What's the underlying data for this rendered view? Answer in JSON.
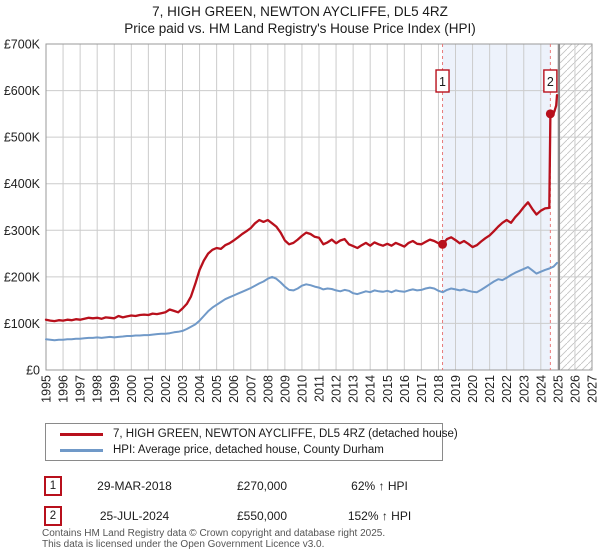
{
  "title": {
    "line1": "7, HIGH GREEN, NEWTON AYCLIFFE, DL5 4RZ",
    "line2": "Price paid vs. HM Land Registry's House Price Index (HPI)"
  },
  "chart_data": {
    "type": "line",
    "x_axis": {
      "min": 1995,
      "max": 2027,
      "tick_years": [
        1995,
        1996,
        1997,
        1998,
        1999,
        2000,
        2001,
        2002,
        2003,
        2004,
        2005,
        2006,
        2007,
        2008,
        2009,
        2010,
        2011,
        2012,
        2013,
        2014,
        2015,
        2016,
        2017,
        2018,
        2019,
        2020,
        2021,
        2022,
        2023,
        2024,
        2025,
        2026,
        2027
      ]
    },
    "y_axis": {
      "max_k": 700,
      "tick_step_k": 100,
      "tick_labels": [
        "£0",
        "£100K",
        "£200K",
        "£300K",
        "£400K",
        "£500K",
        "£600K",
        "£700K"
      ]
    },
    "colors": {
      "property": "#b8101c",
      "hpi": "#7099c8",
      "band": "#edf2fb",
      "grid": "#cccccc",
      "frame": "#9a9a9a",
      "hatch": "#c4c4c4",
      "hatch_edge": "#888888",
      "dashed": "#e87a7a",
      "text": "#222222"
    },
    "shaded_span": {
      "from": 2018.24,
      "to": 2024.56
    },
    "hatched_span": {
      "from": 2025.07,
      "to": 2027
    },
    "grid": true,
    "series": [
      {
        "name": "7, HIGH GREEN, NEWTON AYCLIFFE, DL5 4RZ (detached house)",
        "color": "#b8101c",
        "points": [
          [
            1995.0,
            108
          ],
          [
            1995.25,
            106
          ],
          [
            1995.5,
            105
          ],
          [
            1995.75,
            107
          ],
          [
            1996.0,
            106
          ],
          [
            1996.25,
            108
          ],
          [
            1996.5,
            107
          ],
          [
            1996.75,
            109
          ],
          [
            1997.0,
            108
          ],
          [
            1997.25,
            110
          ],
          [
            1997.5,
            112
          ],
          [
            1997.75,
            111
          ],
          [
            1998.0,
            112
          ],
          [
            1998.25,
            110
          ],
          [
            1998.5,
            113
          ],
          [
            1998.75,
            112
          ],
          [
            1999.0,
            111
          ],
          [
            1999.25,
            116
          ],
          [
            1999.5,
            113
          ],
          [
            1999.75,
            115
          ],
          [
            2000.0,
            117
          ],
          [
            2000.25,
            116
          ],
          [
            2000.5,
            118
          ],
          [
            2000.75,
            119
          ],
          [
            2001.0,
            118
          ],
          [
            2001.25,
            121
          ],
          [
            2001.5,
            120
          ],
          [
            2001.75,
            122
          ],
          [
            2002.0,
            124
          ],
          [
            2002.25,
            130
          ],
          [
            2002.5,
            127
          ],
          [
            2002.75,
            124
          ],
          [
            2003.0,
            132
          ],
          [
            2003.25,
            142
          ],
          [
            2003.5,
            158
          ],
          [
            2003.75,
            185
          ],
          [
            2004.0,
            215
          ],
          [
            2004.25,
            235
          ],
          [
            2004.5,
            250
          ],
          [
            2004.75,
            258
          ],
          [
            2005.0,
            262
          ],
          [
            2005.25,
            260
          ],
          [
            2005.5,
            268
          ],
          [
            2005.75,
            272
          ],
          [
            2006.0,
            278
          ],
          [
            2006.25,
            285
          ],
          [
            2006.5,
            292
          ],
          [
            2006.75,
            298
          ],
          [
            2007.0,
            305
          ],
          [
            2007.25,
            315
          ],
          [
            2007.5,
            322
          ],
          [
            2007.75,
            318
          ],
          [
            2008.0,
            322
          ],
          [
            2008.25,
            315
          ],
          [
            2008.5,
            308
          ],
          [
            2008.75,
            295
          ],
          [
            2009.0,
            278
          ],
          [
            2009.25,
            270
          ],
          [
            2009.5,
            273
          ],
          [
            2009.75,
            280
          ],
          [
            2010.0,
            288
          ],
          [
            2010.25,
            295
          ],
          [
            2010.5,
            292
          ],
          [
            2010.75,
            286
          ],
          [
            2011.0,
            284
          ],
          [
            2011.25,
            270
          ],
          [
            2011.5,
            274
          ],
          [
            2011.75,
            280
          ],
          [
            2012.0,
            272
          ],
          [
            2012.25,
            278
          ],
          [
            2012.5,
            281
          ],
          [
            2012.75,
            270
          ],
          [
            2013.0,
            266
          ],
          [
            2013.25,
            262
          ],
          [
            2013.5,
            268
          ],
          [
            2013.75,
            273
          ],
          [
            2014.0,
            267
          ],
          [
            2014.25,
            274
          ],
          [
            2014.5,
            270
          ],
          [
            2014.75,
            267
          ],
          [
            2015.0,
            271
          ],
          [
            2015.25,
            267
          ],
          [
            2015.5,
            273
          ],
          [
            2015.75,
            269
          ],
          [
            2016.0,
            265
          ],
          [
            2016.25,
            273
          ],
          [
            2016.5,
            277
          ],
          [
            2016.75,
            271
          ],
          [
            2017.0,
            270
          ],
          [
            2017.25,
            275
          ],
          [
            2017.5,
            280
          ],
          [
            2017.75,
            277
          ],
          [
            2018.0,
            272
          ],
          [
            2018.24,
            270
          ],
          [
            2018.5,
            281
          ],
          [
            2018.75,
            285
          ],
          [
            2019.0,
            279
          ],
          [
            2019.25,
            272
          ],
          [
            2019.5,
            277
          ],
          [
            2019.75,
            271
          ],
          [
            2020.0,
            264
          ],
          [
            2020.25,
            268
          ],
          [
            2020.5,
            276
          ],
          [
            2020.75,
            283
          ],
          [
            2021.0,
            289
          ],
          [
            2021.25,
            298
          ],
          [
            2021.5,
            308
          ],
          [
            2021.75,
            316
          ],
          [
            2022.0,
            322
          ],
          [
            2022.25,
            316
          ],
          [
            2022.5,
            328
          ],
          [
            2022.75,
            338
          ],
          [
            2023.0,
            350
          ],
          [
            2023.25,
            360
          ],
          [
            2023.5,
            346
          ],
          [
            2023.75,
            334
          ],
          [
            2024.0,
            342
          ],
          [
            2024.25,
            347
          ],
          [
            2024.5,
            348
          ],
          [
            2024.56,
            550
          ],
          [
            2024.7,
            548
          ],
          [
            2024.8,
            556
          ],
          [
            2024.9,
            568
          ],
          [
            2024.95,
            590
          ]
        ]
      },
      {
        "name": "HPI: Average price, detached house, County Durham",
        "color": "#7099c8",
        "points": [
          [
            1995.0,
            66
          ],
          [
            1995.25,
            65
          ],
          [
            1995.5,
            64
          ],
          [
            1995.75,
            65
          ],
          [
            1996.0,
            65
          ],
          [
            1996.25,
            66
          ],
          [
            1996.5,
            66
          ],
          [
            1996.75,
            67
          ],
          [
            1997.0,
            67
          ],
          [
            1997.25,
            68
          ],
          [
            1997.5,
            69
          ],
          [
            1997.75,
            69
          ],
          [
            1998.0,
            70
          ],
          [
            1998.25,
            69
          ],
          [
            1998.5,
            70
          ],
          [
            1998.75,
            71
          ],
          [
            1999.0,
            70
          ],
          [
            1999.25,
            71
          ],
          [
            1999.5,
            72
          ],
          [
            1999.75,
            73
          ],
          [
            2000.0,
            73
          ],
          [
            2000.25,
            74
          ],
          [
            2000.5,
            74
          ],
          [
            2000.75,
            75
          ],
          [
            2001.0,
            75
          ],
          [
            2001.25,
            76
          ],
          [
            2001.5,
            77
          ],
          [
            2001.75,
            78
          ],
          [
            2002.0,
            78
          ],
          [
            2002.25,
            79
          ],
          [
            2002.5,
            81
          ],
          [
            2002.75,
            82
          ],
          [
            2003.0,
            84
          ],
          [
            2003.25,
            88
          ],
          [
            2003.5,
            93
          ],
          [
            2003.75,
            98
          ],
          [
            2004.0,
            106
          ],
          [
            2004.25,
            116
          ],
          [
            2004.5,
            126
          ],
          [
            2004.75,
            134
          ],
          [
            2005.0,
            140
          ],
          [
            2005.25,
            146
          ],
          [
            2005.5,
            152
          ],
          [
            2005.75,
            156
          ],
          [
            2006.0,
            160
          ],
          [
            2006.25,
            164
          ],
          [
            2006.5,
            168
          ],
          [
            2006.75,
            172
          ],
          [
            2007.0,
            176
          ],
          [
            2007.25,
            181
          ],
          [
            2007.5,
            186
          ],
          [
            2007.75,
            190
          ],
          [
            2008.0,
            196
          ],
          [
            2008.25,
            200
          ],
          [
            2008.5,
            196
          ],
          [
            2008.75,
            188
          ],
          [
            2009.0,
            179
          ],
          [
            2009.25,
            172
          ],
          [
            2009.5,
            171
          ],
          [
            2009.75,
            175
          ],
          [
            2010.0,
            181
          ],
          [
            2010.25,
            184
          ],
          [
            2010.5,
            182
          ],
          [
            2010.75,
            179
          ],
          [
            2011.0,
            177
          ],
          [
            2011.25,
            173
          ],
          [
            2011.5,
            175
          ],
          [
            2011.75,
            174
          ],
          [
            2012.0,
            171
          ],
          [
            2012.25,
            169
          ],
          [
            2012.5,
            172
          ],
          [
            2012.75,
            170
          ],
          [
            2013.0,
            165
          ],
          [
            2013.25,
            163
          ],
          [
            2013.5,
            166
          ],
          [
            2013.75,
            169
          ],
          [
            2014.0,
            167
          ],
          [
            2014.25,
            171
          ],
          [
            2014.5,
            169
          ],
          [
            2014.75,
            168
          ],
          [
            2015.0,
            170
          ],
          [
            2015.25,
            167
          ],
          [
            2015.5,
            171
          ],
          [
            2015.75,
            169
          ],
          [
            2016.0,
            168
          ],
          [
            2016.25,
            171
          ],
          [
            2016.5,
            173
          ],
          [
            2016.75,
            171
          ],
          [
            2017.0,
            172
          ],
          [
            2017.25,
            175
          ],
          [
            2017.5,
            177
          ],
          [
            2017.75,
            175
          ],
          [
            2018.0,
            170
          ],
          [
            2018.25,
            167
          ],
          [
            2018.5,
            172
          ],
          [
            2018.75,
            175
          ],
          [
            2019.0,
            173
          ],
          [
            2019.25,
            171
          ],
          [
            2019.5,
            173
          ],
          [
            2019.75,
            170
          ],
          [
            2020.0,
            168
          ],
          [
            2020.25,
            167
          ],
          [
            2020.5,
            172
          ],
          [
            2020.75,
            178
          ],
          [
            2021.0,
            184
          ],
          [
            2021.25,
            190
          ],
          [
            2021.5,
            195
          ],
          [
            2021.75,
            193
          ],
          [
            2022.0,
            198
          ],
          [
            2022.25,
            204
          ],
          [
            2022.5,
            209
          ],
          [
            2022.75,
            213
          ],
          [
            2023.0,
            217
          ],
          [
            2023.25,
            221
          ],
          [
            2023.5,
            214
          ],
          [
            2023.75,
            207
          ],
          [
            2024.0,
            211
          ],
          [
            2024.25,
            215
          ],
          [
            2024.5,
            218
          ],
          [
            2024.75,
            222
          ],
          [
            2024.95,
            230
          ]
        ]
      }
    ],
    "sale_markers": [
      {
        "label": "1",
        "year": 2018.24,
        "value_k": 270
      },
      {
        "label": "2",
        "year": 2024.56,
        "value_k": 550
      }
    ]
  },
  "transactions": [
    {
      "marker": "1",
      "date": "29-MAR-2018",
      "price": "£270,000",
      "hpi": "62% ↑ HPI"
    },
    {
      "marker": "2",
      "date": "25-JUL-2024",
      "price": "£550,000",
      "hpi": "152% ↑ HPI"
    }
  ],
  "footer": {
    "line1": "Contains HM Land Registry data © Crown copyright and database right 2025.",
    "line2": "This data is licensed under the Open Government Licence v3.0."
  }
}
